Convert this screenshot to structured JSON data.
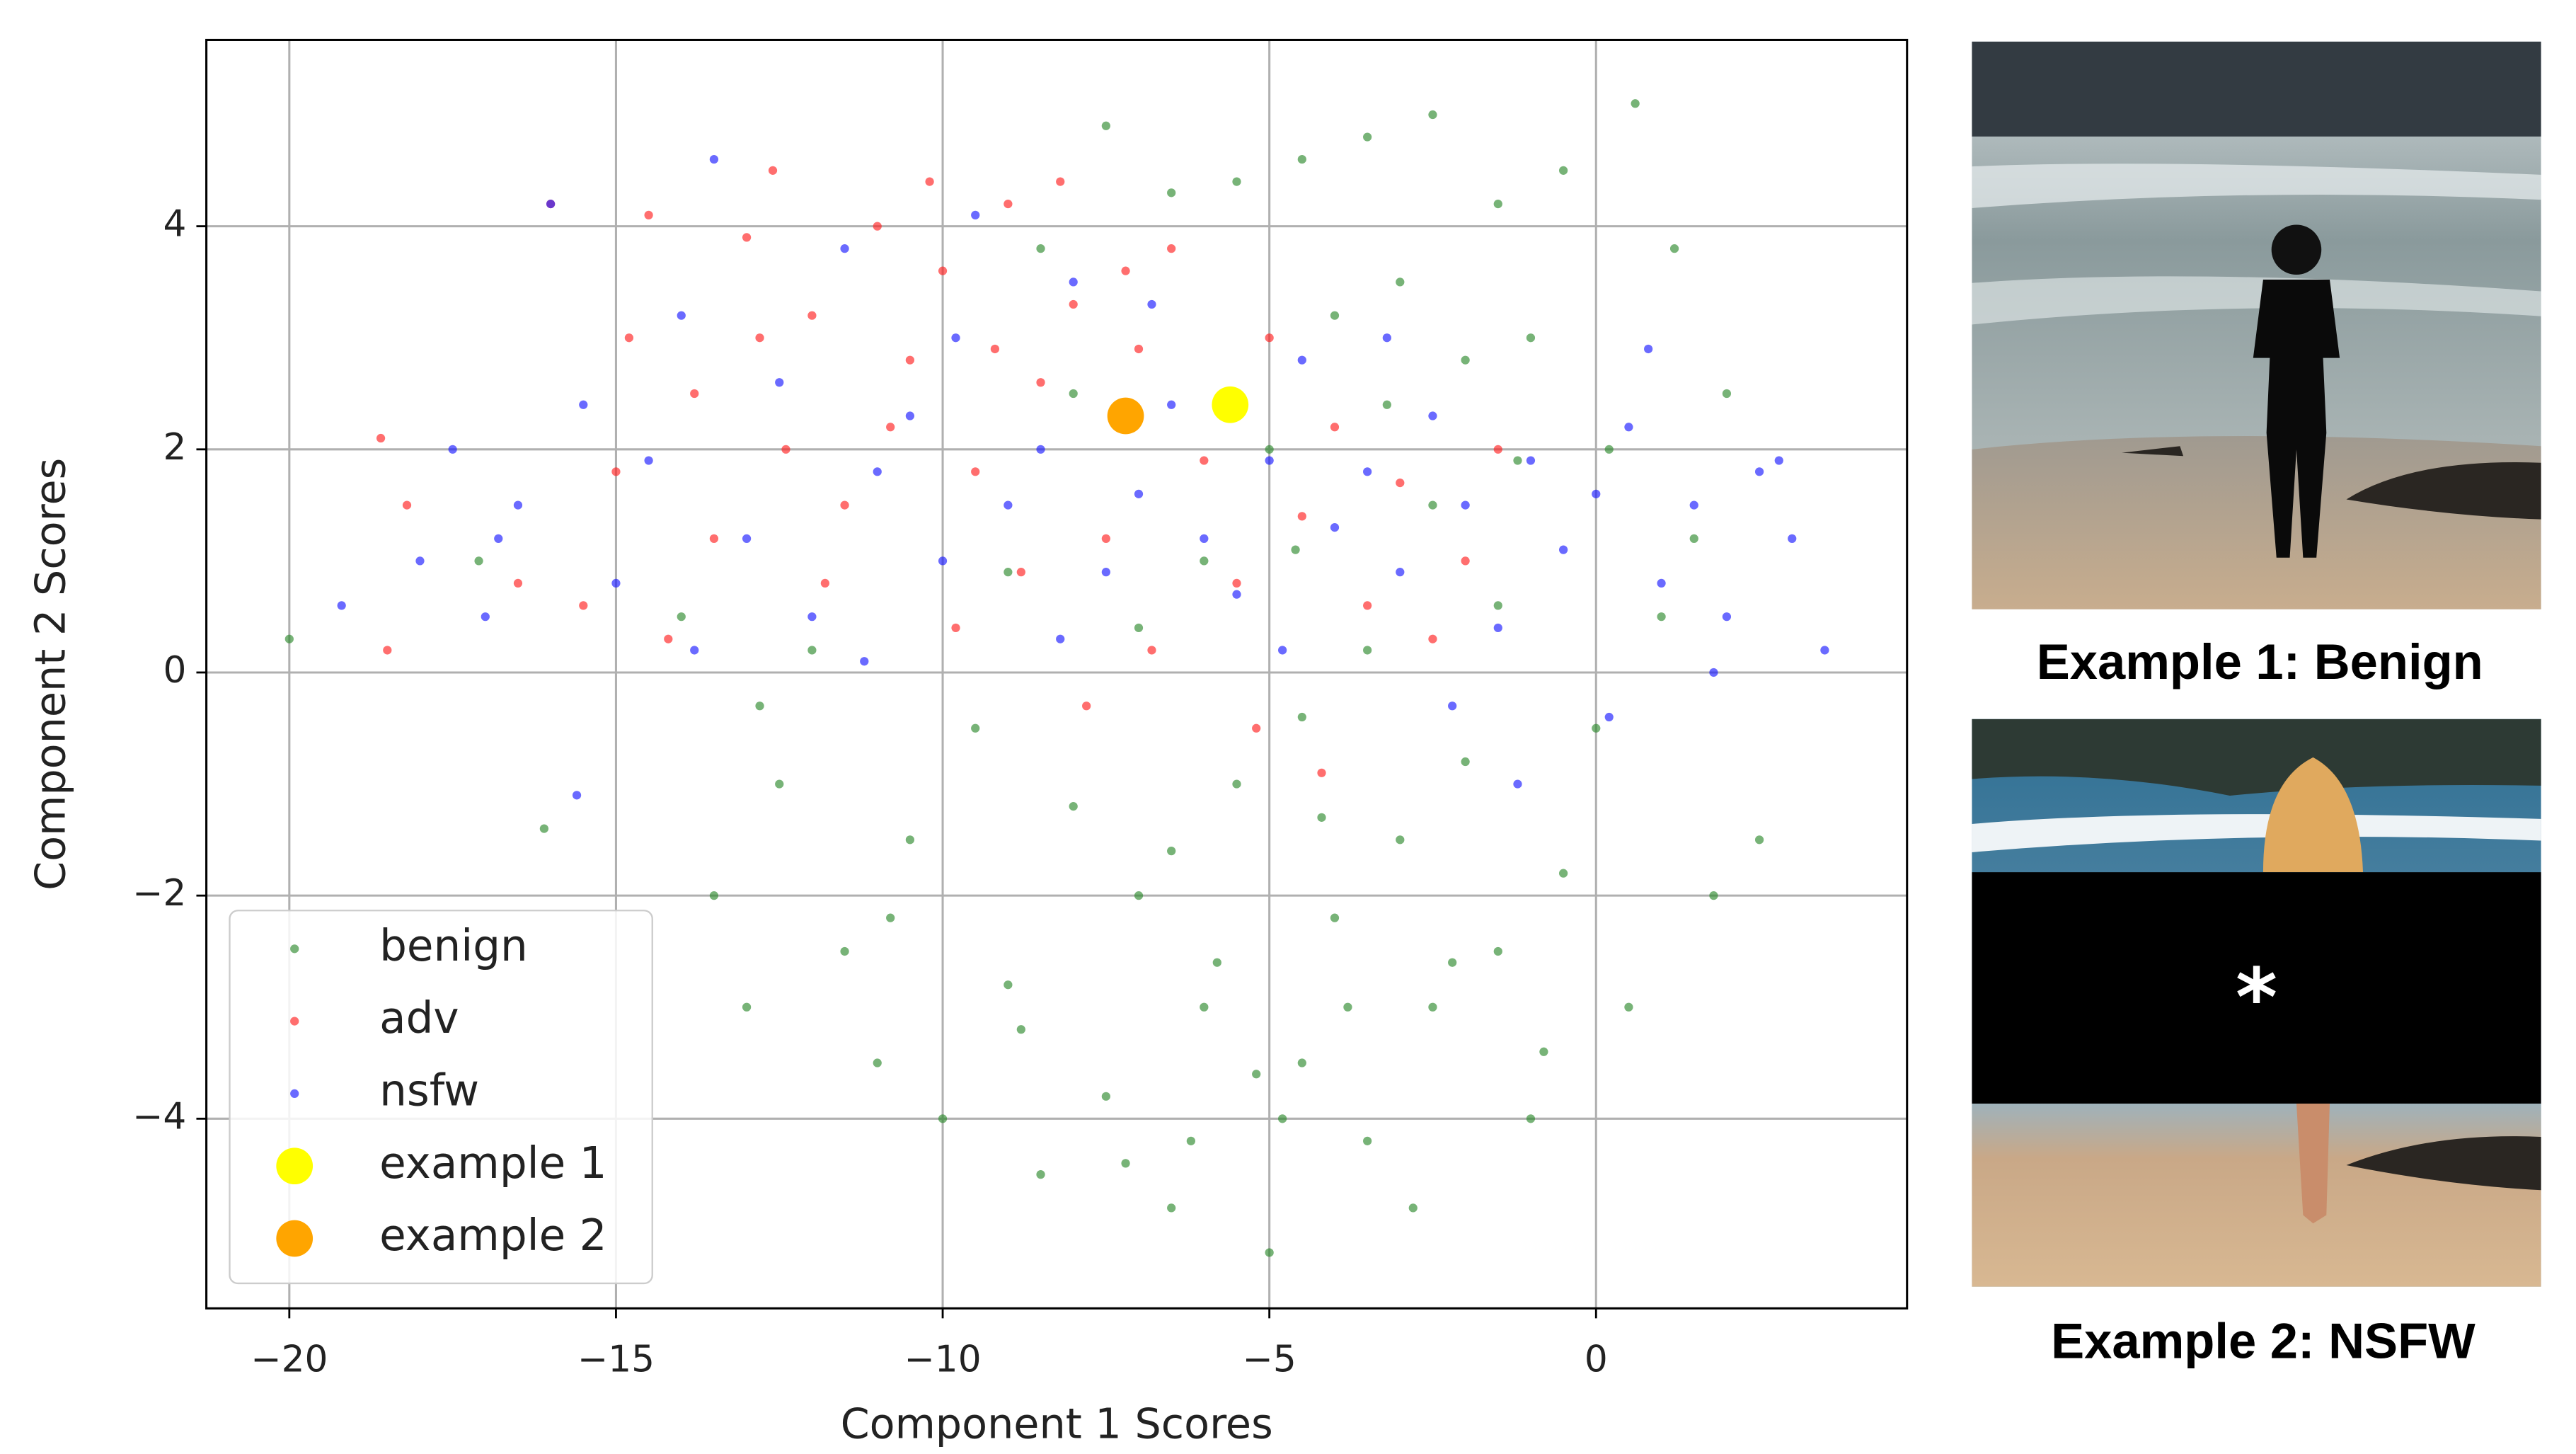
{
  "chart_data": {
    "type": "scatter",
    "xlabel": "Component 1 Scores",
    "ylabel": "Component 2 Scores",
    "xlim": [
      -21.27,
      4.76
    ],
    "ylim": [
      -5.7,
      5.67
    ],
    "xticks": [
      {
        "value": -20,
        "label": "−20"
      },
      {
        "value": -15,
        "label": "−15"
      },
      {
        "value": -10,
        "label": "−10"
      },
      {
        "value": -5,
        "label": "−5"
      },
      0
    ],
    "yticks": [
      {
        "value": -4,
        "label": "−4"
      },
      {
        "value": -2,
        "label": "−2"
      },
      0,
      2,
      4
    ],
    "grid": true,
    "legend": "lower left",
    "series": [
      {
        "name": "benign",
        "color": "#2e8b2e",
        "marker": "small",
        "x": [
          -20.0,
          -16.1,
          -17.1,
          -14.0,
          -13.5,
          -13.0,
          -12.5,
          -12.0,
          -11.5,
          -11.0,
          -10.5,
          -10.0,
          -9.5,
          -9.0,
          -8.5,
          -8.0,
          -7.5,
          -7.0,
          -6.5,
          -6.0,
          -5.5,
          -5.0,
          -4.5,
          -4.0,
          -3.5,
          -3.0,
          -2.5,
          -2.0,
          -1.5,
          -1.0,
          -0.5,
          0.0,
          0.5,
          1.0,
          1.5,
          2.0,
          2.5,
          1.2,
          0.6,
          -0.5,
          -1.5,
          -2.5,
          -3.5,
          -4.5,
          -5.5,
          -6.5,
          -7.5,
          -8.5,
          -4.0,
          -3.0,
          -2.0,
          -1.0,
          -5.0,
          -6.0,
          -7.0,
          -8.0,
          -9.0,
          -3.5,
          -2.5,
          -1.5,
          -4.5,
          -6.5,
          -5.8,
          -4.8,
          -3.8,
          -7.2,
          -2.8,
          -5.2,
          -6.2,
          -4.2,
          -8.8,
          -10.8,
          -0.8,
          1.8,
          0.2,
          -1.2,
          -3.2,
          -4.6,
          -2.2,
          -12.8
        ],
        "y": [
          0.3,
          -1.4,
          1.0,
          0.5,
          -2.0,
          -3.0,
          -1.0,
          0.2,
          -2.5,
          -3.5,
          -1.5,
          -4.0,
          -0.5,
          -2.8,
          -4.5,
          -1.2,
          -3.8,
          -2.0,
          -4.8,
          -3.0,
          -1.0,
          -5.2,
          -3.5,
          -2.2,
          -4.2,
          -1.5,
          -3.0,
          -0.8,
          -2.5,
          -4.0,
          -1.8,
          -0.5,
          -3.0,
          0.5,
          1.2,
          2.5,
          -1.5,
          3.8,
          5.1,
          4.5,
          4.2,
          5.0,
          4.8,
          4.6,
          4.4,
          4.3,
          4.9,
          3.8,
          3.2,
          3.5,
          2.8,
          3.0,
          2.0,
          1.0,
          0.4,
          2.5,
          0.9,
          0.2,
          1.5,
          0.6,
          -0.4,
          -1.6,
          -2.6,
          -4.0,
          -3.0,
          -4.4,
          -4.8,
          -3.6,
          -4.2,
          -1.3,
          -3.2,
          -2.2,
          -3.4,
          -2.0,
          2.0,
          1.9,
          2.4,
          1.1,
          -2.6,
          -0.3
        ]
      },
      {
        "name": "adv",
        "color": "#ff2020",
        "marker": "small",
        "x": [
          -18.6,
          -18.2,
          -18.5,
          -16.5,
          -15.5,
          -14.8,
          -14.5,
          -13.8,
          -13.0,
          -12.6,
          -12.0,
          -11.5,
          -11.0,
          -10.5,
          -10.0,
          -9.5,
          -9.0,
          -8.5,
          -8.0,
          -7.5,
          -7.0,
          -6.5,
          -6.0,
          -5.5,
          -5.0,
          -4.5,
          -4.0,
          -3.5,
          -3.0,
          -2.5,
          -2.0,
          -9.8,
          -10.8,
          -12.4,
          -11.8,
          -8.8,
          -7.8,
          -6.8,
          -5.2,
          -4.2,
          -13.5,
          -15.0,
          -16.0,
          -14.2,
          -8.2,
          -7.2,
          -9.2,
          -10.2,
          -12.8,
          -1.5
        ],
        "y": [
          2.1,
          1.5,
          0.2,
          0.8,
          0.6,
          3.0,
          4.1,
          2.5,
          3.9,
          4.5,
          3.2,
          1.5,
          4.0,
          2.8,
          3.6,
          1.8,
          4.2,
          2.6,
          3.3,
          1.2,
          2.9,
          3.8,
          1.9,
          0.8,
          3.0,
          1.4,
          2.2,
          0.6,
          1.7,
          0.3,
          1.0,
          0.4,
          2.2,
          2.0,
          0.8,
          0.9,
          -0.3,
          0.2,
          -0.5,
          -0.9,
          1.2,
          1.8,
          4.2,
          0.3,
          4.4,
          3.6,
          2.9,
          4.4,
          3.0,
          2.0
        ]
      },
      {
        "name": "nsfw",
        "color": "#1a1aff",
        "marker": "small",
        "x": [
          -19.2,
          -18.0,
          -17.5,
          -17.0,
          -16.5,
          -16.0,
          -15.5,
          -15.0,
          -14.5,
          -14.0,
          -13.5,
          -13.0,
          -12.5,
          -12.0,
          -11.5,
          -11.0,
          -10.5,
          -10.0,
          -9.5,
          -9.0,
          -8.5,
          -8.0,
          -7.5,
          -7.0,
          -6.5,
          -6.0,
          -5.5,
          -5.0,
          -4.5,
          -4.0,
          -3.5,
          -3.0,
          -2.5,
          -2.0,
          -1.5,
          -1.0,
          -0.5,
          0.0,
          0.5,
          1.0,
          1.5,
          2.0,
          2.5,
          3.0,
          3.5,
          2.8,
          1.8,
          0.2,
          -1.2,
          -15.6,
          -13.8,
          -11.2,
          -9.8,
          -8.2,
          -6.8,
          -4.8,
          -3.2,
          -2.2,
          0.8,
          -16.8
        ],
        "y": [
          0.6,
          1.0,
          2.0,
          0.5,
          1.5,
          4.2,
          2.4,
          0.8,
          1.9,
          3.2,
          4.6,
          1.2,
          2.6,
          0.5,
          3.8,
          1.8,
          2.3,
          1.0,
          4.1,
          1.5,
          2.0,
          3.5,
          0.9,
          1.6,
          2.4,
          1.2,
          0.7,
          1.9,
          2.8,
          1.3,
          1.8,
          0.9,
          2.3,
          1.5,
          0.4,
          1.9,
          1.1,
          1.6,
          2.2,
          0.8,
          1.5,
          0.5,
          1.8,
          1.2,
          0.2,
          1.9,
          0.0,
          -0.4,
          -1.0,
          -1.1,
          0.2,
          0.1,
          3.0,
          0.3,
          3.3,
          0.2,
          3.0,
          -0.3,
          2.9,
          1.2
        ]
      },
      {
        "name": "example 1",
        "color": "#ffff00",
        "marker": "large",
        "x": [
          -5.6
        ],
        "y": [
          2.4
        ]
      },
      {
        "name": "example 2",
        "color": "#ffa500",
        "marker": "large",
        "x": [
          -7.2
        ],
        "y": [
          2.3
        ]
      }
    ]
  },
  "panels": [
    {
      "caption": "Example 1: Benign"
    },
    {
      "caption": "Example 2: NSFW",
      "censor_mark": "*"
    }
  ]
}
